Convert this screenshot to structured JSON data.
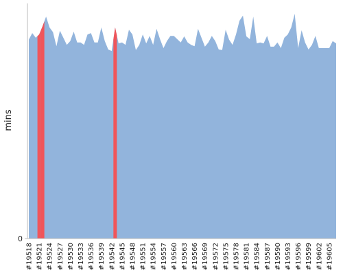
{
  "chart_data": {
    "type": "area",
    "y_label": "mins",
    "categories": [
      "#19518",
      null,
      null,
      "#19521",
      null,
      null,
      "#19524",
      null,
      null,
      "#19527",
      null,
      null,
      "#19530",
      null,
      null,
      "#19533",
      null,
      null,
      "#19536",
      null,
      null,
      "#19539",
      null,
      null,
      "#19542",
      null,
      null,
      "#19545",
      null,
      null,
      "#19548",
      null,
      null,
      "#19551",
      null,
      null,
      "#19554",
      null,
      null,
      "#19557",
      null,
      null,
      "#19560",
      null,
      null,
      "#19563",
      null,
      null,
      "#19566",
      null,
      null,
      "#19569",
      null,
      null,
      "#19572",
      null,
      null,
      "#19575",
      null,
      null,
      "#19578",
      null,
      null,
      "#19581",
      null,
      null,
      "#19584",
      null,
      null,
      "#19587",
      null,
      null,
      "#19590",
      null,
      null,
      "#19593",
      null,
      null,
      "#19596",
      null,
      null,
      "#19599",
      null,
      null,
      "#19602",
      null,
      null,
      "#19605",
      null,
      null
    ],
    "values": [
      42.3,
      43.7,
      42.7,
      43.4,
      45.2,
      47.2,
      44.9,
      43.9,
      40.9,
      44.2,
      42.7,
      41.2,
      42.0,
      44.0,
      41.7,
      41.7,
      41.2,
      43.4,
      43.7,
      41.7,
      41.7,
      44.9,
      42.0,
      40.2,
      39.9,
      44.9,
      41.5,
      41.7,
      41.2,
      44.4,
      43.4,
      40.1,
      41.2,
      43.4,
      41.5,
      43.1,
      41.2,
      44.6,
      42.4,
      40.5,
      42.0,
      43.1,
      43.1,
      42.4,
      41.7,
      43.0,
      41.7,
      41.2,
      40.9,
      44.6,
      42.7,
      40.8,
      41.7,
      43.1,
      42.0,
      40.2,
      40.1,
      44.4,
      42.3,
      41.2,
      43.4,
      46.3,
      47.4,
      43.0,
      42.4,
      47.2,
      41.5,
      41.7,
      41.5,
      43.1,
      40.8,
      40.8,
      41.7,
      40.5,
      42.7,
      43.4,
      44.9,
      47.8,
      40.5,
      44.3,
      41.7,
      40.2,
      41.2,
      43.1,
      40.5,
      40.5,
      40.5,
      40.5,
      42.0,
      41.5
    ],
    "color": "#92b4dc",
    "highlight": [
      3,
      4,
      25
    ],
    "highlight_color": "#f0555a",
    "ylim": [
      0,
      50
    ],
    "yticks": [
      0
    ]
  }
}
